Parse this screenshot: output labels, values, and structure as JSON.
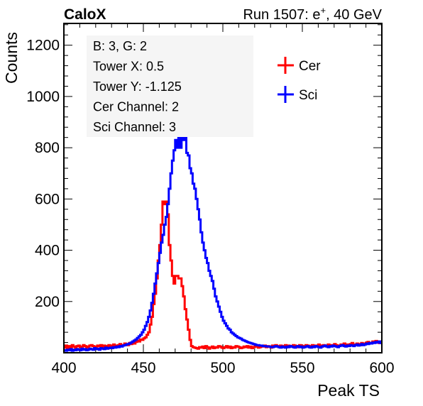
{
  "header": {
    "left": "CaloX",
    "right_main": "Run 1507: e",
    "right_sup": "+",
    "right_tail": ", 40 GeV"
  },
  "info_box": [
    "B: 3, G: 2",
    "Tower X: 0.5",
    "Tower Y: -1.125",
    "Cer Channel: 2",
    "Sci Channel: 3"
  ],
  "colors": {
    "cer": "#ff0000",
    "sci": "#0000ff",
    "info_bg": "#f5f5f5"
  },
  "chart_data": {
    "type": "line",
    "style": "step histogram",
    "xlabel": "Peak TS",
    "ylabel": "Counts",
    "xlim": [
      400,
      600
    ],
    "ylim": [
      0,
      1285
    ],
    "x_ticks": [
      400,
      450,
      500,
      550,
      600
    ],
    "y_ticks": [
      200,
      400,
      600,
      800,
      1000,
      1200
    ],
    "grid": false,
    "legend_position": "top-right",
    "x": [
      400,
      401,
      402,
      403,
      404,
      405,
      406,
      407,
      408,
      409,
      410,
      411,
      412,
      413,
      414,
      415,
      416,
      417,
      418,
      419,
      420,
      421,
      422,
      423,
      424,
      425,
      426,
      427,
      428,
      429,
      430,
      431,
      432,
      433,
      434,
      435,
      436,
      437,
      438,
      439,
      440,
      441,
      442,
      443,
      444,
      445,
      446,
      447,
      448,
      449,
      450,
      451,
      452,
      453,
      454,
      455,
      456,
      457,
      458,
      459,
      460,
      461,
      462,
      463,
      464,
      465,
      466,
      467,
      468,
      469,
      470,
      471,
      472,
      473,
      474,
      475,
      476,
      477,
      478,
      479,
      480,
      481,
      482,
      483,
      484,
      485,
      486,
      487,
      488,
      489,
      490,
      491,
      492,
      493,
      494,
      495,
      496,
      497,
      498,
      499,
      500,
      501,
      502,
      503,
      504,
      505,
      506,
      507,
      508,
      509,
      510,
      511,
      512,
      513,
      514,
      515,
      516,
      517,
      518,
      519,
      520,
      521,
      522,
      523,
      524,
      525,
      526,
      527,
      528,
      529,
      530,
      531,
      532,
      533,
      534,
      535,
      536,
      537,
      538,
      539,
      540,
      541,
      542,
      543,
      544,
      545,
      546,
      547,
      548,
      549,
      550,
      551,
      552,
      553,
      554,
      555,
      556,
      557,
      558,
      559,
      560,
      561,
      562,
      563,
      564,
      565,
      566,
      567,
      568,
      569,
      570,
      571,
      572,
      573,
      574,
      575,
      576,
      577,
      578,
      579,
      580,
      581,
      582,
      583,
      584,
      585,
      586,
      587,
      588,
      589,
      590,
      591,
      592,
      593,
      594,
      595,
      596,
      597,
      598,
      599
    ],
    "series": [
      {
        "name": "Cer",
        "color": "#ff0000",
        "values": [
          20,
          28,
          18,
          26,
          22,
          30,
          24,
          20,
          26,
          28,
          22,
          24,
          30,
          26,
          20,
          24,
          28,
          30,
          26,
          22,
          24,
          28,
          26,
          30,
          22,
          28,
          24,
          26,
          30,
          28,
          24,
          32,
          26,
          28,
          30,
          34,
          28,
          30,
          36,
          32,
          30,
          38,
          34,
          40,
          36,
          42,
          48,
          44,
          52,
          50,
          56,
          60,
          70,
          80,
          110,
          140,
          190,
          230,
          290,
          360,
          420,
          500,
          590,
          580,
          590,
          540,
          420,
          360,
          300,
          270,
          300,
          300,
          290,
          290,
          260,
          220,
          170,
          130,
          90,
          50,
          26,
          22,
          20,
          18,
          16,
          22,
          20,
          24,
          18,
          26,
          22,
          16,
          20,
          24,
          18,
          22,
          20,
          26,
          24,
          20,
          18,
          22,
          26,
          20,
          24,
          18,
          22,
          20,
          26,
          24,
          22,
          18,
          20,
          24,
          22,
          26,
          20,
          24,
          18,
          22,
          26,
          24,
          20,
          22,
          26,
          24,
          28,
          22,
          26,
          24,
          20,
          28,
          24,
          30,
          26,
          22,
          28,
          24,
          26,
          30,
          22,
          28,
          26,
          24,
          30,
          28,
          26,
          22,
          30,
          28,
          24,
          26,
          30,
          28,
          22,
          26,
          30,
          24,
          28,
          26,
          32,
          28,
          24,
          30,
          26,
          28,
          32,
          26,
          30,
          28,
          34,
          30,
          26,
          28,
          32,
          30,
          36,
          28,
          32,
          30,
          34,
          38,
          30,
          32,
          36,
          34,
          30,
          38,
          34,
          36,
          40,
          42,
          36,
          38,
          44,
          40,
          46,
          42,
          38,
          44
        ]
      },
      {
        "name": "Sci",
        "color": "#0000ff",
        "values": [
          10,
          8,
          12,
          10,
          14,
          8,
          12,
          10,
          14,
          12,
          10,
          16,
          12,
          14,
          10,
          12,
          16,
          14,
          12,
          18,
          14,
          16,
          12,
          18,
          16,
          14,
          20,
          16,
          18,
          20,
          18,
          22,
          20,
          24,
          22,
          26,
          24,
          28,
          30,
          32,
          34,
          36,
          40,
          44,
          48,
          52,
          58,
          64,
          70,
          80,
          90,
          105,
          120,
          140,
          165,
          195,
          230,
          270,
          310,
          350,
          390,
          430,
          460,
          500,
          530,
          580,
          640,
          700,
          750,
          790,
          830,
          800,
          850,
          800,
          860,
          830,
          880,
          780,
          770,
          720,
          700,
          660,
          640,
          600,
          560,
          520,
          470,
          430,
          400,
          370,
          350,
          320,
          300,
          280,
          250,
          220,
          200,
          180,
          160,
          140,
          125,
          115,
          105,
          95,
          90,
          80,
          75,
          70,
          65,
          60,
          58,
          55,
          50,
          48,
          45,
          42,
          40,
          38,
          36,
          34,
          32,
          30,
          30,
          28,
          28,
          26,
          26,
          25,
          24,
          24,
          22,
          22,
          24,
          26,
          24,
          22,
          20,
          24,
          22,
          20,
          24,
          22,
          26,
          24,
          22,
          20,
          24,
          26,
          22,
          24,
          20,
          22,
          24,
          26,
          22,
          20,
          24,
          22,
          26,
          24,
          22,
          20,
          24,
          26,
          28,
          24,
          22,
          26,
          24,
          28,
          26,
          24,
          22,
          26,
          28,
          30,
          26,
          24,
          28,
          26,
          30,
          28,
          26,
          30,
          32,
          28,
          30,
          34,
          30,
          32,
          36,
          34,
          38,
          36,
          40,
          38,
          42,
          40,
          44,
          38
        ]
      }
    ]
  }
}
